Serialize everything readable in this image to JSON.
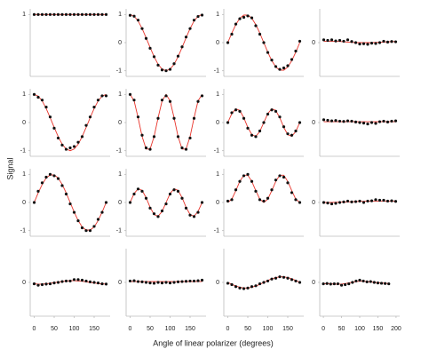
{
  "y_label": "Signal",
  "x_label": "Angle of linear polarizer (degrees)",
  "chart_data": [
    {
      "type": "scatter",
      "x": [
        0,
        10,
        20,
        30,
        40,
        50,
        60,
        70,
        80,
        90,
        100,
        110,
        120,
        130,
        140,
        150,
        160,
        170,
        180
      ],
      "values": [
        1,
        1,
        1,
        1,
        1,
        1,
        1,
        1,
        1,
        1,
        1,
        1,
        1,
        1,
        1,
        1,
        1,
        1,
        1
      ],
      "fit": [
        1,
        1,
        1,
        1,
        1,
        1,
        1,
        1,
        1,
        1,
        1,
        1,
        1,
        1,
        1,
        1,
        1,
        1,
        1
      ],
      "color": "#111111",
      "fit_color": "#e8332a",
      "xlim": [
        -10,
        190
      ],
      "ylim": [
        -1.2,
        1.2
      ],
      "yticks": [
        1
      ]
    },
    {
      "type": "scatter",
      "x": [
        0,
        10,
        20,
        30,
        40,
        50,
        60,
        70,
        80,
        90,
        100,
        110,
        120,
        130,
        140,
        150,
        160,
        170,
        180
      ],
      "values": [
        0.97,
        0.94,
        0.8,
        0.5,
        0.15,
        -0.2,
        -0.5,
        -0.8,
        -0.97,
        -1,
        -0.95,
        -0.75,
        -0.48,
        -0.15,
        0.2,
        0.5,
        0.8,
        0.93,
        0.98
      ],
      "fit": [
        1,
        0.94,
        0.77,
        0.5,
        0.17,
        -0.17,
        -0.5,
        -0.77,
        -0.94,
        -1,
        -0.94,
        -0.77,
        -0.5,
        -0.17,
        0.17,
        0.5,
        0.77,
        0.94,
        1
      ],
      "color": "#111111",
      "fit_color": "#e8332a",
      "xlim": [
        -10,
        190
      ],
      "ylim": [
        -1.2,
        1.2
      ],
      "yticks": [
        -1,
        0,
        1
      ]
    },
    {
      "type": "scatter",
      "x": [
        0,
        10,
        20,
        30,
        40,
        50,
        60,
        70,
        80,
        90,
        100,
        110,
        120,
        130,
        140,
        150,
        160,
        170,
        180
      ],
      "values": [
        0,
        0.3,
        0.66,
        0.85,
        0.9,
        0.95,
        0.88,
        0.6,
        0.3,
        0,
        -0.35,
        -0.62,
        -0.85,
        -0.95,
        -0.9,
        -0.82,
        -0.6,
        -0.3,
        0.05
      ],
      "fit": [
        0,
        0.34,
        0.64,
        0.87,
        0.98,
        0.98,
        0.87,
        0.64,
        0.34,
        0,
        -0.34,
        -0.64,
        -0.87,
        -0.98,
        -0.98,
        -0.87,
        -0.64,
        -0.34,
        0
      ],
      "color": "#111111",
      "fit_color": "#e8332a",
      "xlim": [
        -10,
        190
      ],
      "ylim": [
        -1.2,
        1.2
      ],
      "yticks": [
        -1,
        0,
        1
      ]
    },
    {
      "type": "scatter",
      "x": [
        0,
        10,
        20,
        30,
        40,
        50,
        60,
        70,
        80,
        90,
        100,
        110,
        120,
        130,
        140,
        150,
        160,
        170,
        180
      ],
      "values": [
        0.1,
        0.08,
        0.1,
        0.06,
        0.08,
        0.05,
        0.1,
        0.04,
        0,
        -0.05,
        -0.04,
        -0.06,
        -0.02,
        -0.03,
        0,
        0.05,
        0.02,
        0.04,
        0.03
      ],
      "fit": [
        0.05,
        0.05,
        0.05,
        0.04,
        0.04,
        0.03,
        0.02,
        0.01,
        0,
        0,
        0,
        0,
        0,
        0.01,
        0.01,
        0.02,
        0.03,
        0.03,
        0.04
      ],
      "color": "#111111",
      "fit_color": "#e8332a",
      "xlim": [
        -10,
        190
      ],
      "ylim": [
        -1.2,
        1.2
      ],
      "yticks": [
        0
      ]
    },
    {
      "type": "scatter",
      "x": [
        0,
        10,
        20,
        30,
        40,
        50,
        60,
        70,
        80,
        90,
        100,
        110,
        120,
        130,
        140,
        150,
        160,
        170,
        180
      ],
      "values": [
        1,
        0.9,
        0.8,
        0.55,
        0.2,
        -0.2,
        -0.55,
        -0.8,
        -0.95,
        -0.9,
        -0.85,
        -0.7,
        -0.5,
        -0.1,
        0.2,
        0.55,
        0.8,
        0.95,
        0.95
      ],
      "fit": [
        1,
        0.94,
        0.77,
        0.5,
        0.17,
        -0.17,
        -0.5,
        -0.77,
        -0.94,
        -1,
        -0.94,
        -0.77,
        -0.5,
        -0.17,
        0.17,
        0.5,
        0.77,
        0.94,
        1
      ],
      "color": "#111111",
      "fit_color": "#e8332a",
      "xlim": [
        -10,
        190
      ],
      "ylim": [
        -1.2,
        1.2
      ],
      "yticks": [
        -1,
        0,
        1
      ]
    },
    {
      "type": "scatter",
      "x": [
        0,
        10,
        20,
        30,
        40,
        50,
        60,
        70,
        80,
        90,
        100,
        110,
        120,
        130,
        140,
        150,
        160,
        170,
        180
      ],
      "values": [
        1,
        0.8,
        0.2,
        -0.45,
        -0.9,
        -0.95,
        -0.5,
        0.15,
        0.8,
        0.95,
        0.75,
        0.15,
        -0.5,
        -0.9,
        -0.95,
        -0.55,
        0.15,
        0.75,
        0.95
      ],
      "fit": [
        1,
        0.77,
        0.17,
        -0.5,
        -0.94,
        -0.94,
        -0.5,
        0.17,
        0.77,
        1,
        0.77,
        0.17,
        -0.5,
        -0.94,
        -0.94,
        -0.5,
        0.17,
        0.77,
        1
      ],
      "color": "#111111",
      "fit_color": "#e8332a",
      "xlim": [
        -10,
        190
      ],
      "ylim": [
        -1.2,
        1.2
      ],
      "yticks": [
        -1,
        0,
        1
      ]
    },
    {
      "type": "scatter",
      "x": [
        0,
        10,
        20,
        30,
        40,
        50,
        60,
        70,
        80,
        90,
        100,
        110,
        120,
        130,
        140,
        150,
        160,
        170,
        180
      ],
      "values": [
        0,
        0.35,
        0.45,
        0.4,
        0.15,
        -0.2,
        -0.45,
        -0.5,
        -0.3,
        0,
        0.3,
        0.45,
        0.4,
        0.2,
        -0.15,
        -0.4,
        -0.45,
        -0.3,
        0
      ],
      "fit": [
        0,
        0.32,
        0.49,
        0.43,
        0.17,
        -0.17,
        -0.43,
        -0.49,
        -0.32,
        0,
        0.32,
        0.49,
        0.43,
        0.17,
        -0.17,
        -0.43,
        -0.49,
        -0.32,
        0
      ],
      "color": "#111111",
      "fit_color": "#e8332a",
      "xlim": [
        -10,
        190
      ],
      "ylim": [
        -1.2,
        1.2
      ],
      "yticks": [
        -1,
        0,
        1
      ]
    },
    {
      "type": "scatter",
      "x": [
        0,
        10,
        20,
        30,
        40,
        50,
        60,
        70,
        80,
        90,
        100,
        110,
        120,
        130,
        140,
        150,
        160,
        170,
        180
      ],
      "values": [
        0.1,
        0.08,
        0.06,
        0.07,
        0.05,
        0.04,
        0.06,
        0.05,
        0.02,
        0,
        -0.02,
        -0.05,
        0,
        -0.03,
        0.03,
        0.05,
        0.02,
        0.05,
        0.06
      ],
      "fit": [
        0.03,
        0.03,
        0.03,
        0.03,
        0.03,
        0.03,
        0.03,
        0.03,
        0.03,
        0.03,
        0.03,
        0.03,
        0.03,
        0.03,
        0.03,
        0.03,
        0.03,
        0.03,
        0.03
      ],
      "color": "#111111",
      "fit_color": "#e8332a",
      "xlim": [
        -10,
        190
      ],
      "ylim": [
        -1.2,
        1.2
      ],
      "yticks": [
        0
      ]
    },
    {
      "type": "scatter",
      "x": [
        0,
        10,
        20,
        30,
        40,
        50,
        60,
        70,
        80,
        90,
        100,
        110,
        120,
        130,
        140,
        150,
        160,
        170,
        180
      ],
      "values": [
        0,
        0.4,
        0.7,
        0.9,
        1,
        0.95,
        0.85,
        0.6,
        0.3,
        -0.05,
        -0.35,
        -0.65,
        -0.9,
        -1,
        -1,
        -0.85,
        -0.6,
        -0.35,
        0
      ],
      "fit": [
        0,
        0.34,
        0.64,
        0.87,
        0.98,
        0.98,
        0.87,
        0.64,
        0.34,
        0,
        -0.34,
        -0.64,
        -0.87,
        -0.98,
        -0.98,
        -0.87,
        -0.64,
        -0.34,
        0
      ],
      "color": "#111111",
      "fit_color": "#e8332a",
      "xlim": [
        -10,
        190
      ],
      "ylim": [
        -1.2,
        1.2
      ],
      "yticks": [
        -1,
        0,
        1
      ]
    },
    {
      "type": "scatter",
      "x": [
        0,
        10,
        20,
        30,
        40,
        50,
        60,
        70,
        80,
        90,
        100,
        110,
        120,
        130,
        140,
        150,
        160,
        170,
        180
      ],
      "values": [
        0,
        0.3,
        0.48,
        0.4,
        0.15,
        -0.2,
        -0.4,
        -0.5,
        -0.3,
        -0.05,
        0.3,
        0.45,
        0.4,
        0.15,
        -0.2,
        -0.45,
        -0.5,
        -0.35,
        0
      ],
      "fit": [
        0,
        0.32,
        0.49,
        0.43,
        0.17,
        -0.17,
        -0.43,
        -0.49,
        -0.32,
        0,
        0.32,
        0.49,
        0.43,
        0.17,
        -0.17,
        -0.43,
        -0.49,
        -0.32,
        0
      ],
      "color": "#111111",
      "fit_color": "#e8332a",
      "xlim": [
        -10,
        190
      ],
      "ylim": [
        -1.2,
        1.2
      ],
      "yticks": [
        -1,
        0,
        1
      ]
    },
    {
      "type": "scatter",
      "x": [
        0,
        10,
        20,
        30,
        40,
        50,
        60,
        70,
        80,
        90,
        100,
        110,
        120,
        130,
        140,
        150,
        160,
        170,
        180
      ],
      "values": [
        0.05,
        0.1,
        0.45,
        0.75,
        0.95,
        1,
        0.75,
        0.4,
        0.1,
        0.05,
        0.15,
        0.45,
        0.8,
        0.95,
        0.9,
        0.7,
        0.35,
        0.1,
        0
      ],
      "fit": [
        0,
        0.12,
        0.42,
        0.75,
        0.97,
        0.97,
        0.75,
        0.42,
        0.12,
        0,
        0.12,
        0.42,
        0.75,
        0.97,
        0.97,
        0.75,
        0.42,
        0.12,
        0
      ],
      "color": "#111111",
      "fit_color": "#e8332a",
      "xlim": [
        -10,
        190
      ],
      "ylim": [
        -1.2,
        1.2
      ],
      "yticks": [
        -1,
        0,
        1
      ]
    },
    {
      "type": "scatter",
      "x": [
        0,
        10,
        20,
        30,
        40,
        50,
        60,
        70,
        80,
        90,
        100,
        110,
        120,
        130,
        140,
        150,
        160,
        170,
        180
      ],
      "values": [
        0,
        -0.02,
        -0.05,
        -0.03,
        0,
        0.02,
        0.05,
        0.02,
        0.03,
        0.05,
        0,
        0.05,
        0.06,
        0.1,
        0.08,
        0.08,
        0.05,
        0.06,
        0.04
      ],
      "fit": [
        0,
        0,
        0,
        0.01,
        0.01,
        0.02,
        0.02,
        0.03,
        0.03,
        0.04,
        0.04,
        0.05,
        0.05,
        0.05,
        0.05,
        0.05,
        0.05,
        0.05,
        0.04
      ],
      "color": "#111111",
      "fit_color": "#e8332a",
      "xlim": [
        -10,
        190
      ],
      "ylim": [
        -1.2,
        1.2
      ],
      "yticks": [
        0
      ]
    },
    {
      "type": "scatter",
      "x": [
        0,
        10,
        20,
        30,
        40,
        50,
        60,
        70,
        80,
        90,
        100,
        110,
        120,
        130,
        140,
        150,
        160,
        170,
        180
      ],
      "values": [
        -0.05,
        -0.1,
        -0.08,
        -0.06,
        -0.05,
        -0.02,
        0,
        0.03,
        0.05,
        0.05,
        0.1,
        0.1,
        0.08,
        0.05,
        0.02,
        0,
        -0.02,
        -0.05,
        -0.06
      ],
      "fit": [
        -0.05,
        -0.06,
        -0.06,
        -0.05,
        -0.03,
        -0.01,
        0.01,
        0.03,
        0.05,
        0.06,
        0.06,
        0.05,
        0.04,
        0.02,
        0,
        -0.02,
        -0.04,
        -0.05,
        -0.06
      ],
      "color": "#111111",
      "fit_color": "#e8332a",
      "xlim": [
        -10,
        190
      ],
      "ylim": [
        -1.2,
        1.2
      ],
      "yticks": [
        0
      ],
      "xticks": [
        0,
        50,
        100,
        150
      ]
    },
    {
      "type": "scatter",
      "x": [
        0,
        10,
        20,
        30,
        40,
        50,
        60,
        70,
        80,
        90,
        100,
        110,
        120,
        130,
        140,
        150,
        160,
        170,
        180
      ],
      "values": [
        0.05,
        0.06,
        0.03,
        0.02,
        0,
        -0.02,
        -0.03,
        0,
        -0.02,
        0,
        -0.02,
        0,
        0.02,
        0.03,
        0.04,
        0.05,
        0.05,
        0.06,
        0.08
      ],
      "fit": [
        0.03,
        0.03,
        0.03,
        0.03,
        0.03,
        0.03,
        0.03,
        0.03,
        0.03,
        0.03,
        0.03,
        0.03,
        0.03,
        0.03,
        0.03,
        0.03,
        0.03,
        0.03,
        0.03
      ],
      "color": "#111111",
      "fit_color": "#e8332a",
      "xlim": [
        -10,
        190
      ],
      "ylim": [
        -1.2,
        1.2
      ],
      "yticks": [
        0
      ],
      "xticks": [
        0,
        50,
        100,
        150
      ]
    },
    {
      "type": "scatter",
      "x": [
        0,
        10,
        20,
        30,
        40,
        50,
        60,
        70,
        80,
        90,
        100,
        110,
        120,
        130,
        140,
        150,
        160,
        170,
        180
      ],
      "values": [
        -0.03,
        -0.08,
        -0.15,
        -0.2,
        -0.22,
        -0.2,
        -0.15,
        -0.12,
        -0.05,
        0,
        0.05,
        0.12,
        0.15,
        0.2,
        0.18,
        0.15,
        0.1,
        0.05,
        0
      ],
      "fit": [
        0,
        -0.07,
        -0.13,
        -0.17,
        -0.2,
        -0.2,
        -0.17,
        -0.13,
        -0.07,
        0,
        0.07,
        0.13,
        0.17,
        0.2,
        0.2,
        0.17,
        0.13,
        0.07,
        0
      ],
      "color": "#111111",
      "fit_color": "#e8332a",
      "xlim": [
        -10,
        190
      ],
      "ylim": [
        -1.2,
        1.2
      ],
      "yticks": [
        0
      ],
      "xticks": [
        0,
        50,
        100,
        150
      ]
    },
    {
      "type": "scatter",
      "x": [
        0,
        10,
        20,
        30,
        40,
        50,
        60,
        70,
        80,
        90,
        100,
        110,
        120,
        130,
        140,
        150,
        160,
        170,
        180
      ],
      "values": [
        -0.05,
        -0.04,
        -0.06,
        -0.05,
        -0.05,
        -0.1,
        -0.08,
        -0.05,
        0,
        0.05,
        0.08,
        0.05,
        0.02,
        0.03,
        0,
        -0.02,
        -0.03,
        -0.04,
        -0.05
      ],
      "fit": [
        -0.04,
        -0.05,
        -0.05,
        -0.06,
        -0.06,
        -0.06,
        -0.04,
        -0.02,
        0.01,
        0.03,
        0.04,
        0.04,
        0.03,
        0.02,
        0,
        -0.01,
        -0.02,
        -0.03,
        -0.04
      ],
      "color": "#111111",
      "fit_color": "#e8332a",
      "xlim": [
        -10,
        210
      ],
      "ylim": [
        -1.2,
        1.2
      ],
      "yticks": [
        0
      ],
      "xticks": [
        0,
        50,
        100,
        150,
        200
      ]
    }
  ]
}
